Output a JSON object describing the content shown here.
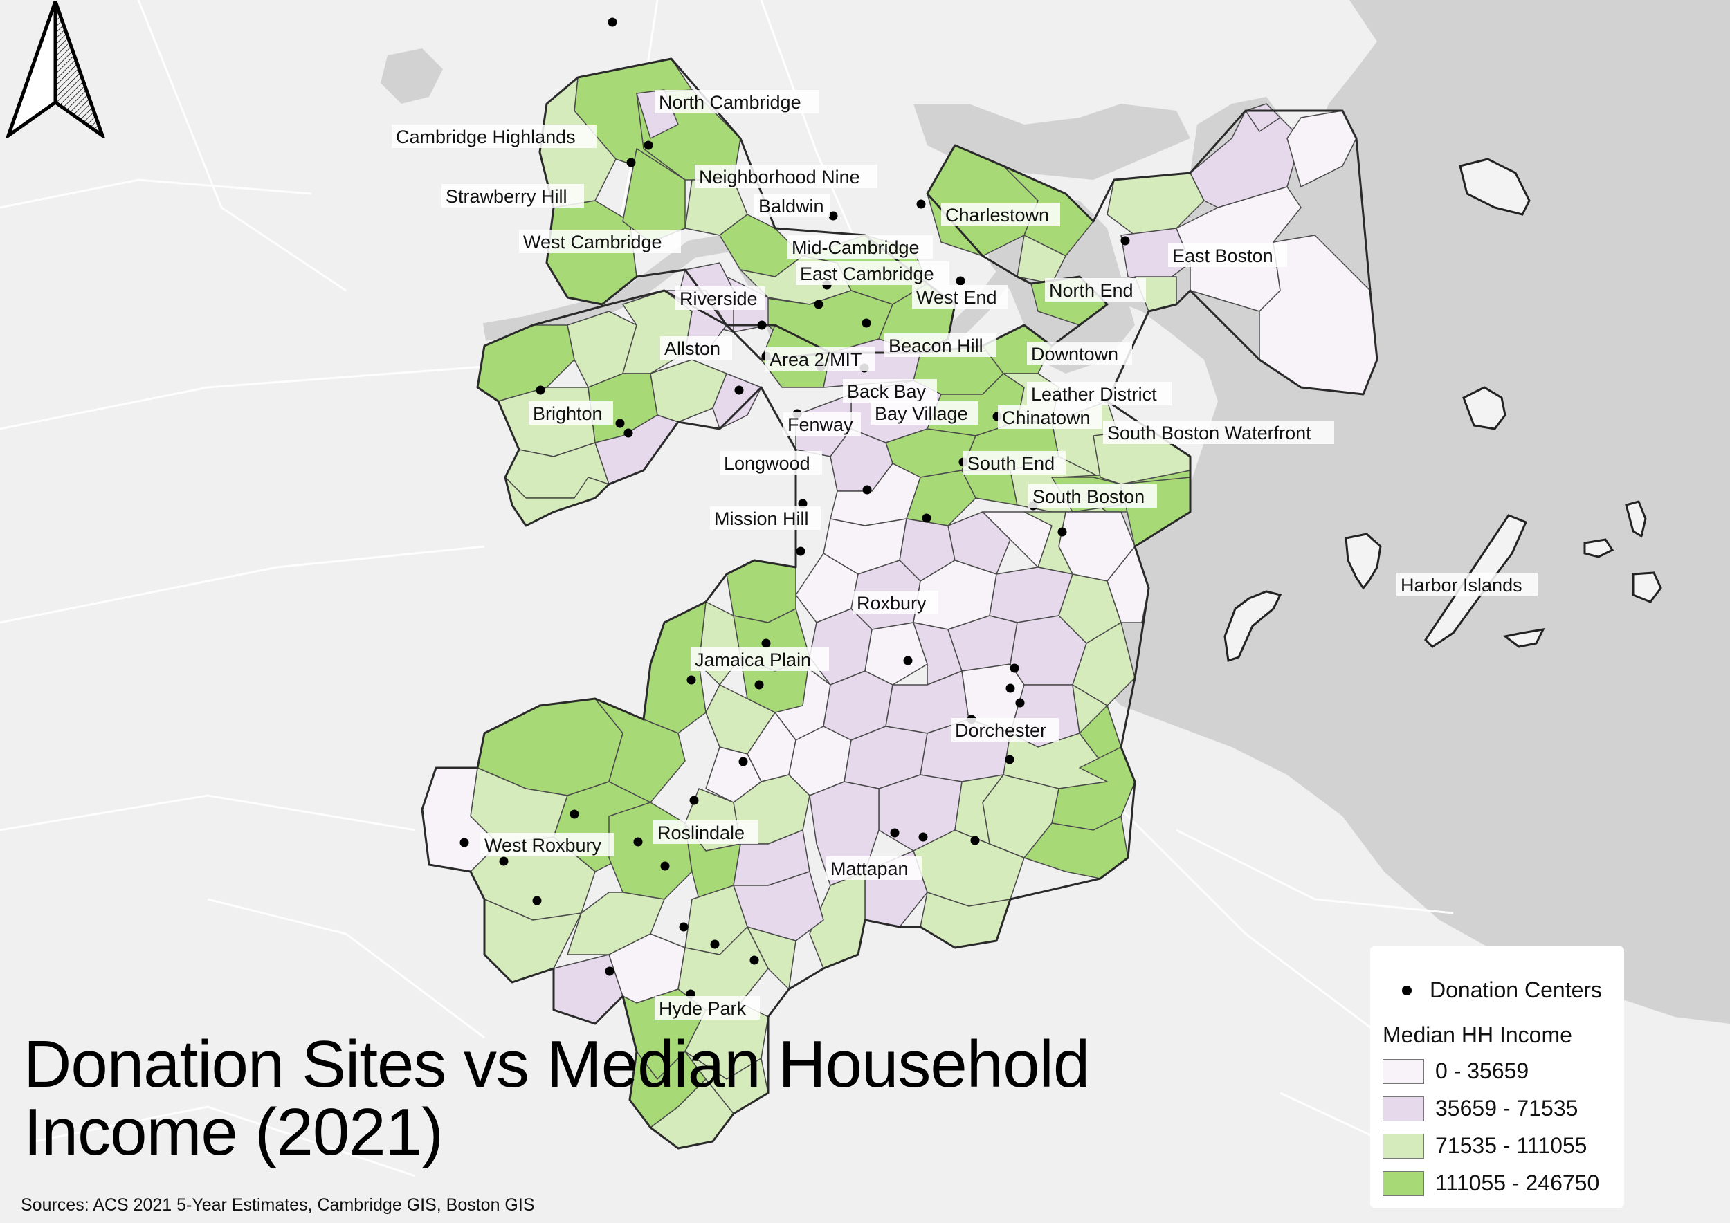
{
  "title": {
    "line1": "Donation Sites vs Median Household",
    "line2": "Income (2021)"
  },
  "sources": "Sources: ACS 2021 5-Year Estimates, Cambridge GIS,  Boston GIS",
  "legend": {
    "centers_label": "Donation Centers",
    "income_title": "Median HH Income",
    "classes": [
      {
        "label": "0 - 35659",
        "color": "#f7f3f8"
      },
      {
        "label": "35659 - 71535",
        "color": "#e6d9ec"
      },
      {
        "label": "71535 - 111055",
        "color": "#d6ebbc"
      },
      {
        "label": "111055 - 246750",
        "color": "#a8d977"
      }
    ]
  },
  "colors": {
    "water": "#d2d2d2",
    "land": "#f0f0f0",
    "boundary": "#3a3a3a",
    "center": "#000000"
  },
  "north_arrow": "north-arrow-icon",
  "neighborhoods": [
    "North Cambridge",
    "Cambridge Highlands",
    "Neighborhood Nine",
    "Strawberry Hill",
    "Baldwin",
    "Charlestown",
    "West Cambridge",
    "Mid-Cambridge",
    "East Boston",
    "East Cambridge",
    "Riverside",
    "West End",
    "North End",
    "Allston",
    "Area 2/MIT",
    "Beacon Hill",
    "Downtown",
    "Back Bay",
    "Leather District",
    "Brighton",
    "Fenway",
    "Bay Village",
    "Chinatown",
    "South Boston Waterfront",
    "Longwood",
    "South End",
    "South Boston",
    "Mission Hill",
    "Harbor Islands",
    "Roxbury",
    "Jamaica Plain",
    "Dorchester",
    "West Roxbury",
    "Roslindale",
    "Mattapan",
    "Hyde Park"
  ]
}
